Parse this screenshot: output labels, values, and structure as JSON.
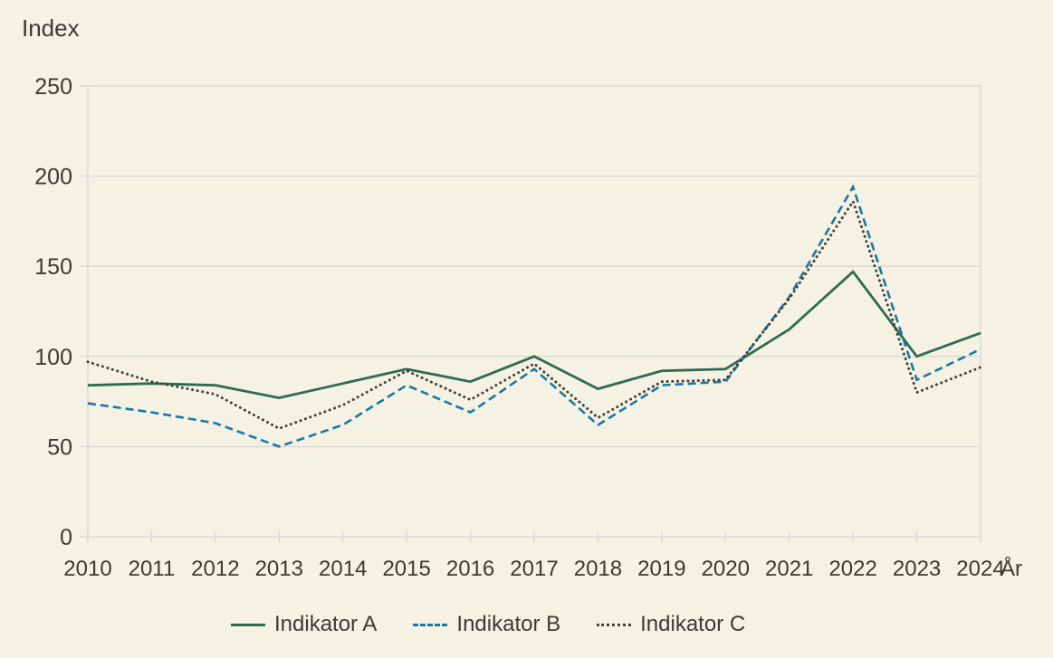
{
  "page": {
    "background": "#f5f2e4"
  },
  "chart_data": {
    "type": "line",
    "title": "",
    "ylabel": "Index",
    "xlabel": "År",
    "x": [
      2010,
      2011,
      2012,
      2013,
      2014,
      2015,
      2016,
      2017,
      2018,
      2019,
      2020,
      2021,
      2022,
      2023,
      2024
    ],
    "yticks": [
      0,
      50,
      100,
      150,
      200,
      250
    ],
    "ylim": [
      0,
      250
    ],
    "grid": "horizontal-only",
    "legend_position": "bottom-center",
    "colors": {
      "background": "#f5f2e4",
      "grid": "#d9d9d3",
      "text": "#3c3a31"
    },
    "series": [
      {
        "name": "Indikator A",
        "style": "solid",
        "color": "#2e6b4f",
        "values": [
          84,
          85,
          84,
          77,
          85,
          93,
          86,
          100,
          82,
          92,
          93,
          115,
          147,
          100,
          113
        ]
      },
      {
        "name": "Indikator B",
        "style": "dashed",
        "color": "#1779a5",
        "values": [
          74,
          69,
          63,
          50,
          62,
          84,
          69,
          93,
          62,
          84,
          86,
          133,
          194,
          87,
          104
        ]
      },
      {
        "name": "Indikator C",
        "style": "dotted",
        "color": "#454038",
        "values": [
          97,
          86,
          79,
          60,
          73,
          92,
          76,
          96,
          66,
          86,
          87,
          132,
          186,
          80,
          94
        ]
      }
    ]
  }
}
